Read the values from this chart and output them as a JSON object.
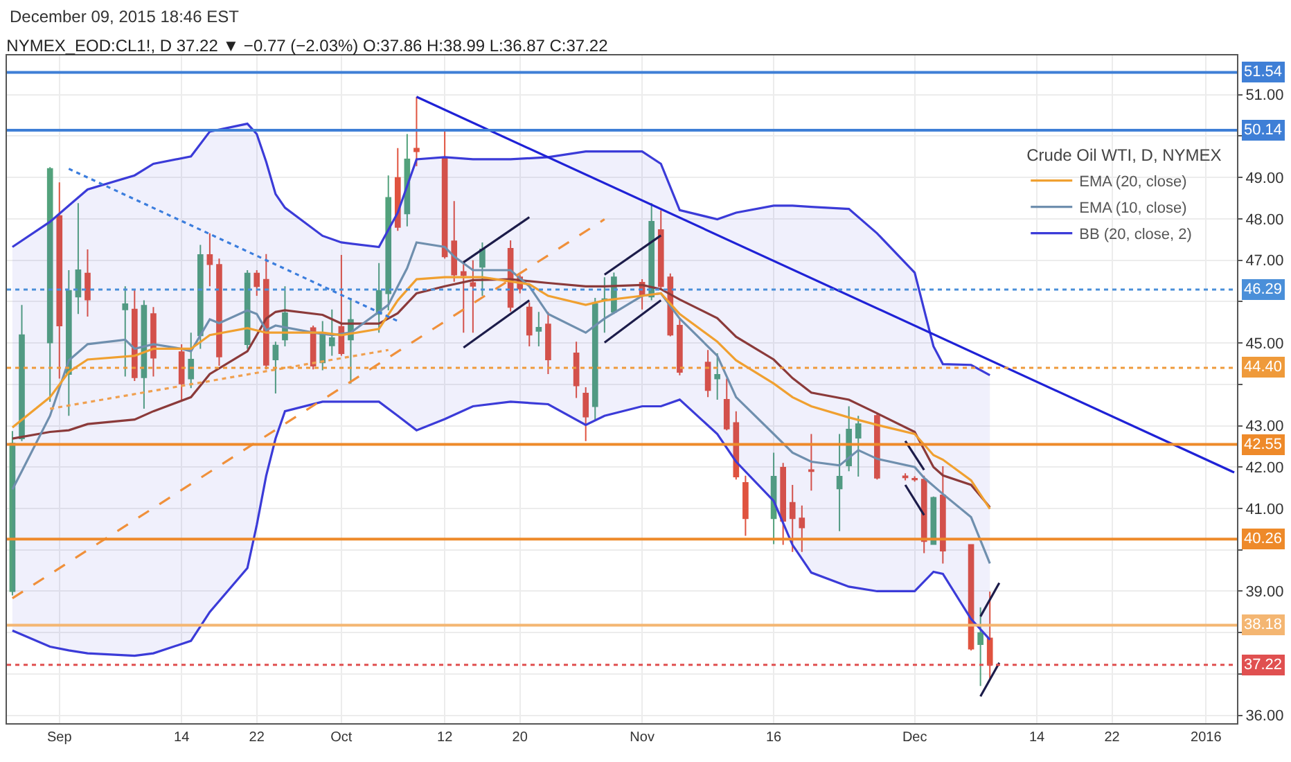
{
  "chart_data": {
    "type": "candlestick",
    "title": "NYMEX_EOD:CL1!, D 37.22 ▼ −0.77 (−2.03%) O:37.86 H:38.99 L:36.87 C:37.22",
    "annotations": [
      "December 09, 2015 18:46 EST"
    ],
    "legend_title": "Crude Oil WTI, D, NYMEX",
    "x": [
      "2015-08-27",
      "2015-08-28",
      "2015-08-31",
      "2015-09-01",
      "2015-09-02",
      "2015-09-03",
      "2015-09-04",
      "2015-09-08",
      "2015-09-09",
      "2015-09-10",
      "2015-09-11",
      "2015-09-14",
      "2015-09-15",
      "2015-09-16",
      "2015-09-17",
      "2015-09-18",
      "2015-09-21",
      "2015-09-22",
      "2015-09-23",
      "2015-09-24",
      "2015-09-25",
      "2015-09-28",
      "2015-09-29",
      "2015-09-30",
      "2015-10-01",
      "2015-10-02",
      "2015-10-05",
      "2015-10-06",
      "2015-10-07",
      "2015-10-08",
      "2015-10-09",
      "2015-10-12",
      "2015-10-13",
      "2015-10-14",
      "2015-10-15",
      "2015-10-16",
      "2015-10-19",
      "2015-10-20",
      "2015-10-21",
      "2015-10-22",
      "2015-10-23",
      "2015-10-26",
      "2015-10-27",
      "2015-10-28",
      "2015-10-29",
      "2015-10-30",
      "2015-11-02",
      "2015-11-03",
      "2015-11-04",
      "2015-11-05",
      "2015-11-06",
      "2015-11-09",
      "2015-11-10",
      "2015-11-11",
      "2015-11-12",
      "2015-11-13",
      "2015-11-16",
      "2015-11-17",
      "2015-11-18",
      "2015-11-19",
      "2015-11-20",
      "2015-11-23",
      "2015-11-24",
      "2015-11-25",
      "2015-11-27",
      "2015-11-30",
      "2015-12-01",
      "2015-12-02",
      "2015-12-03",
      "2015-12-04",
      "2015-12-07",
      "2015-12-08",
      "2015-12-09"
    ],
    "ohlc": [
      [
        39.0,
        42.87,
        38.9,
        42.57
      ],
      [
        42.69,
        45.92,
        42.63,
        45.19
      ],
      [
        45.01,
        49.25,
        43.58,
        49.21
      ],
      [
        48.07,
        48.88,
        44.14,
        45.42
      ],
      [
        44.25,
        46.76,
        43.24,
        46.26
      ],
      [
        46.12,
        48.38,
        45.7,
        46.76
      ],
      [
        46.68,
        47.26,
        45.64,
        46.05
      ],
      [
        45.81,
        46.37,
        44.19,
        45.94
      ],
      [
        45.81,
        46.28,
        44.08,
        44.17
      ],
      [
        44.17,
        46.03,
        43.41,
        45.9
      ],
      [
        45.7,
        45.87,
        44.19,
        44.64
      ],
      [
        44.78,
        44.97,
        43.63,
        44.02
      ],
      [
        44.14,
        45.25,
        43.91,
        44.6
      ],
      [
        45.18,
        47.37,
        44.86,
        47.13
      ],
      [
        47.13,
        47.65,
        46.37,
        46.9
      ],
      [
        46.89,
        47.04,
        44.45,
        44.67
      ],
      [
        44.97,
        46.76,
        44.86,
        46.68
      ],
      [
        46.68,
        46.76,
        46.14,
        46.37
      ],
      [
        46.53,
        47.15,
        44.36,
        44.47
      ],
      [
        44.6,
        45.03,
        43.78,
        44.94
      ],
      [
        45.08,
        46.37,
        44.92,
        45.72
      ],
      [
        45.36,
        45.42,
        44.36,
        44.45
      ],
      [
        44.53,
        45.53,
        44.34,
        45.25
      ],
      [
        44.94,
        45.81,
        44.69,
        45.12
      ],
      [
        45.39,
        47.13,
        44.69,
        44.75
      ],
      [
        45.08,
        46.09,
        44.02,
        45.56
      ],
      [
        45.7,
        46.93,
        45.25,
        46.26
      ],
      [
        46.2,
        49.05,
        45.79,
        48.51
      ],
      [
        48.99,
        49.71,
        47.71,
        47.8
      ],
      [
        48.13,
        50.05,
        47.82,
        49.44
      ],
      [
        49.7,
        50.95,
        49.27,
        49.63
      ],
      [
        49.49,
        50.11,
        47.04,
        47.09
      ],
      [
        47.46,
        48.43,
        46.48,
        46.65
      ],
      [
        46.72,
        46.98,
        45.25,
        46.64
      ],
      [
        46.45,
        47.0,
        45.25,
        46.38
      ],
      [
        46.84,
        47.43,
        46.14,
        47.26
      ],
      [
        47.28,
        47.48,
        45.76,
        45.87
      ],
      [
        46.59,
        46.65,
        46.2,
        46.31
      ],
      [
        45.86,
        45.98,
        44.92,
        45.2
      ],
      [
        45.29,
        45.75,
        44.92,
        45.37
      ],
      [
        45.45,
        45.75,
        44.25,
        44.6
      ],
      [
        44.75,
        45.03,
        43.67,
        43.97
      ],
      [
        43.78,
        43.93,
        42.63,
        43.22
      ],
      [
        43.47,
        46.09,
        43.13,
        45.94
      ],
      [
        46.05,
        46.59,
        45.25,
        46.06
      ],
      [
        45.75,
        46.7,
        45.7,
        46.59
      ],
      [
        46.46,
        46.54,
        45.81,
        46.14
      ],
      [
        46.12,
        48.38,
        46.03,
        47.93
      ],
      [
        47.73,
        48.21,
        46.31,
        46.37
      ],
      [
        46.59,
        46.68,
        45.16,
        45.2
      ],
      [
        45.42,
        45.59,
        44.22,
        44.3
      ],
      [
        44.53,
        44.83,
        43.69,
        43.86
      ],
      [
        44.14,
        44.75,
        43.63,
        44.23
      ],
      [
        43.63,
        44.14,
        42.89,
        42.93
      ],
      [
        43.07,
        43.35,
        41.7,
        41.77
      ],
      [
        41.62,
        41.79,
        40.34,
        40.76
      ],
      [
        40.76,
        42.35,
        40.14,
        41.77
      ],
      [
        41.99,
        42.1,
        40.12,
        40.7
      ],
      [
        41.14,
        41.57,
        39.95,
        40.76
      ],
      [
        40.76,
        41.07,
        39.95,
        40.54
      ],
      [
        41.93,
        42.8,
        41.43,
        41.9
      ],
      [
        41.48,
        42.8,
        40.45,
        41.77
      ],
      [
        42.04,
        43.47,
        41.9,
        42.91
      ],
      [
        42.71,
        43.24,
        41.77,
        43.04
      ],
      [
        43.24,
        43.3,
        41.7,
        41.74
      ],
      [
        41.78,
        41.85,
        41.68,
        41.75
      ],
      [
        41.72,
        41.78,
        41.65,
        41.7
      ],
      [
        41.7,
        41.79,
        39.92,
        40.21
      ],
      [
        40.14,
        41.29,
        40.14,
        41.26
      ],
      [
        41.32,
        42.02,
        39.67,
        39.98
      ],
      [
        40.12,
        40.14,
        37.57,
        37.61
      ],
      [
        37.72,
        38.61,
        36.71,
        37.99
      ],
      [
        37.86,
        38.99,
        36.87,
        37.22
      ]
    ],
    "colors": [
      "#53a27c",
      "#53a27c",
      "#53a27c",
      "#e0533f",
      "#53a27c",
      "#53a27c",
      "#e0533f",
      "#53a27c",
      "#e0533f",
      "#53a27c",
      "#e0533f",
      "#e0533f",
      "#53a27c",
      "#53a27c",
      "#e0533f",
      "#e0533f",
      "#53a27c",
      "#e0533f",
      "#e0533f",
      "#53a27c",
      "#53a27c",
      "#e0533f",
      "#53a27c",
      "#53a27c",
      "#e0533f",
      "#53a27c",
      "#53a27c",
      "#53a27c",
      "#e0533f",
      "#53a27c",
      "#e0533f",
      "#e0533f",
      "#e0533f",
      "#e0533f",
      "#e0533f",
      "#53a27c",
      "#e0533f",
      "#e0533f",
      "#e0533f",
      "#53a27c",
      "#e0533f",
      "#e0533f",
      "#e0533f",
      "#53a27c",
      "#53a27c",
      "#53a27c",
      "#e0533f",
      "#53a27c",
      "#e0533f",
      "#e0533f",
      "#e0533f",
      "#e0533f",
      "#53a27c",
      "#e0533f",
      "#e0533f",
      "#e0533f",
      "#53a27c",
      "#e0533f",
      "#e0533f",
      "#e0533f",
      "#e0533f",
      "#53a27c",
      "#53a27c",
      "#53a27c",
      "#e0533f",
      "#e0533f",
      "#e0533f",
      "#e0533f",
      "#53a27c",
      "#e0533f",
      "#e0533f",
      "#53a27c",
      "#e0533f"
    ],
    "series": [
      {
        "type": "line",
        "name": "BB (20, close, 2)",
        "color": "#3b3bd8",
        "x": [
          "2015-08-27",
          "2015-08-31",
          "2015-09-02",
          "2015-09-04",
          "2015-09-09",
          "2015-09-11",
          "2015-09-15",
          "2015-09-17",
          "2015-09-21",
          "2015-09-22",
          "2015-09-23",
          "2015-09-24",
          "2015-09-25",
          "2015-09-29",
          "2015-10-01",
          "2015-10-05",
          "2015-10-07",
          "2015-10-09",
          "2015-10-12",
          "2015-10-15",
          "2015-10-19",
          "2015-10-23",
          "2015-10-27",
          "2015-10-29",
          "2015-11-02",
          "2015-11-04",
          "2015-11-06",
          "2015-11-10",
          "2015-11-12",
          "2015-11-16",
          "2015-11-18",
          "2015-11-20",
          "2015-11-24",
          "2015-11-27",
          "2015-12-01",
          "2015-12-03",
          "2015-12-04",
          "2015-12-07",
          "2015-12-09"
        ],
        "values": [
          47.32,
          47.93,
          48.32,
          48.71,
          49.05,
          49.33,
          49.51,
          50.11,
          50.3,
          50.05,
          49.38,
          48.6,
          48.27,
          47.59,
          47.43,
          47.32,
          48.15,
          49.44,
          49.49,
          49.44,
          49.44,
          49.49,
          49.63,
          49.63,
          49.63,
          49.33,
          48.21,
          47.99,
          48.15,
          48.32,
          48.32,
          48.29,
          48.24,
          47.65,
          46.7,
          44.92,
          44.49,
          44.47,
          44.22
        ]
      },
      {
        "type": "line",
        "color": "#3b3bd8",
        "x": [
          "2015-08-27",
          "2015-08-31",
          "2015-09-02",
          "2015-09-04",
          "2015-09-09",
          "2015-09-11",
          "2015-09-15",
          "2015-09-17",
          "2015-09-21",
          "2015-09-22",
          "2015-09-23",
          "2015-09-24",
          "2015-09-25",
          "2015-09-29",
          "2015-10-01",
          "2015-10-05",
          "2015-10-07",
          "2015-10-09",
          "2015-10-12",
          "2015-10-15",
          "2015-10-19",
          "2015-10-23",
          "2015-10-27",
          "2015-10-29",
          "2015-11-02",
          "2015-11-04",
          "2015-11-06",
          "2015-11-10",
          "2015-11-12",
          "2015-11-16",
          "2015-11-18",
          "2015-11-20",
          "2015-11-24",
          "2015-11-27",
          "2015-12-01",
          "2015-12-03",
          "2015-12-04",
          "2015-12-07",
          "2015-12-09"
        ],
        "values": [
          38.05,
          37.66,
          37.57,
          37.5,
          37.44,
          37.5,
          37.8,
          38.5,
          39.56,
          40.6,
          41.79,
          42.69,
          43.35,
          43.58,
          43.58,
          43.58,
          43.24,
          42.89,
          43.16,
          43.47,
          43.58,
          43.52,
          43.02,
          43.24,
          43.47,
          43.47,
          43.63,
          42.8,
          42.13,
          41.18,
          40.12,
          39.45,
          39.11,
          39.0,
          39.0,
          39.47,
          39.42,
          38.33,
          37.83
        ]
      },
      {
        "type": "line",
        "color": "#8b3a3a",
        "upper": [
          47.32,
          47.93,
          48.32,
          48.71,
          49.05,
          49.33,
          49.51,
          50.11,
          50.3,
          50.05,
          49.38,
          48.6,
          48.27,
          47.59,
          47.43,
          47.32,
          48.15,
          49.44,
          49.49,
          49.44,
          49.44,
          49.49,
          49.63,
          49.63,
          49.63,
          49.33,
          48.21,
          47.99,
          48.15,
          48.32,
          48.32,
          48.29,
          48.24,
          47.65,
          46.7,
          44.92,
          44.49,
          44.47,
          44.22
        ],
        "lower": [
          38.05,
          37.66,
          37.57,
          37.5,
          37.44,
          37.5,
          37.8,
          38.5,
          39.56,
          40.6,
          41.79,
          42.69,
          43.35,
          43.58,
          43.58,
          43.58,
          43.24,
          42.89,
          43.16,
          43.47,
          43.58,
          43.52,
          43.02,
          43.24,
          43.47,
          43.47,
          43.63,
          42.8,
          42.13,
          41.18,
          40.12,
          39.45,
          39.11,
          39.0,
          39.0,
          39.47,
          39.42,
          38.33,
          37.83
        ],
        "x": [
          "2015-08-27",
          "2015-08-31",
          "2015-09-02",
          "2015-09-04",
          "2015-09-09",
          "2015-09-11",
          "2015-09-15",
          "2015-09-17",
          "2015-09-21",
          "2015-09-22",
          "2015-09-23",
          "2015-09-24",
          "2015-09-25",
          "2015-09-29",
          "2015-10-01",
          "2015-10-05",
          "2015-10-07",
          "2015-10-09",
          "2015-10-12",
          "2015-10-15",
          "2015-10-19",
          "2015-10-23",
          "2015-10-27",
          "2015-10-29",
          "2015-11-02",
          "2015-11-04",
          "2015-11-06",
          "2015-11-10",
          "2015-11-12",
          "2015-11-16",
          "2015-11-18",
          "2015-11-20",
          "2015-11-24",
          "2015-11-27",
          "2015-12-01",
          "2015-12-03",
          "2015-12-04",
          "2015-12-07",
          "2015-12-09"
        ],
        "values": [
          42.69,
          42.85,
          42.89,
          43.04,
          43.15,
          43.35,
          43.69,
          44.25,
          44.8,
          45.19,
          45.59,
          45.75,
          45.79,
          45.68,
          45.47,
          45.47,
          45.72,
          46.2,
          46.37,
          46.52,
          46.54,
          46.45,
          46.37,
          46.37,
          46.4,
          46.3,
          46.05,
          45.6,
          45.15,
          44.6,
          44.15,
          43.8,
          43.63,
          43.3,
          42.85,
          42.0,
          41.8,
          41.57,
          41.03
        ]
      },
      {
        "type": "line",
        "name": "EMA (10, close)",
        "color": "#6f8fae",
        "x": [
          "2015-08-27",
          "2015-08-28",
          "2015-08-31",
          "2015-09-02",
          "2015-09-04",
          "2015-09-08",
          "2015-09-09",
          "2015-09-11",
          "2015-09-14",
          "2015-09-15",
          "2015-09-17",
          "2015-09-18",
          "2015-09-21",
          "2015-09-22",
          "2015-09-23",
          "2015-09-24",
          "2015-09-28",
          "2015-09-30",
          "2015-10-02",
          "2015-10-06",
          "2015-10-07",
          "2015-10-08",
          "2015-10-09",
          "2015-10-12",
          "2015-10-13",
          "2015-10-15",
          "2015-10-19",
          "2015-10-21",
          "2015-10-23",
          "2015-10-27",
          "2015-10-29",
          "2015-11-02",
          "2015-11-04",
          "2015-11-06",
          "2015-11-10",
          "2015-11-12",
          "2015-11-16",
          "2015-11-18",
          "2015-11-20",
          "2015-11-23",
          "2015-11-25",
          "2015-11-27",
          "2015-12-01",
          "2015-12-02",
          "2015-12-04",
          "2015-12-07",
          "2015-12-09"
        ],
        "values": [
          41.46,
          41.9,
          43.24,
          44.58,
          44.97,
          45.08,
          44.86,
          44.97,
          44.86,
          44.8,
          45.57,
          45.48,
          45.79,
          45.7,
          45.31,
          45.42,
          45.25,
          45.19,
          45.25,
          45.92,
          46.37,
          46.81,
          47.43,
          47.32,
          47.09,
          46.76,
          46.76,
          46.37,
          45.7,
          45.25,
          45.59,
          46.14,
          46.2,
          45.59,
          44.69,
          43.69,
          42.8,
          42.35,
          42.13,
          42.04,
          42.41,
          42.2,
          42.0,
          41.74,
          41.35,
          40.79,
          39.67
        ]
      },
      {
        "type": "line",
        "name": "EMA (20, close)",
        "color": "#f0a030",
        "x": [
          "2015-08-27",
          "2015-08-31",
          "2015-09-02",
          "2015-09-04",
          "2015-09-09",
          "2015-09-11",
          "2015-09-15",
          "2015-09-17",
          "2015-09-21",
          "2015-09-23",
          "2015-09-29",
          "2015-10-01",
          "2015-10-05",
          "2015-10-07",
          "2015-10-09",
          "2015-10-12",
          "2015-10-16",
          "2015-10-21",
          "2015-10-23",
          "2015-10-27",
          "2015-10-29",
          "2015-11-02",
          "2015-11-04",
          "2015-11-06",
          "2015-11-10",
          "2015-11-12",
          "2015-11-16",
          "2015-11-18",
          "2015-11-20",
          "2015-11-24",
          "2015-11-27",
          "2015-12-01",
          "2015-12-03",
          "2015-12-04",
          "2015-12-07",
          "2015-12-09"
        ],
        "values": [
          42.96,
          43.69,
          44.3,
          44.6,
          44.69,
          44.86,
          44.86,
          45.19,
          45.36,
          45.25,
          45.25,
          45.19,
          45.34,
          46.03,
          46.54,
          46.59,
          46.59,
          46.42,
          46.14,
          45.92,
          46.03,
          46.14,
          46.2,
          45.7,
          45.03,
          44.58,
          44.02,
          43.69,
          43.47,
          43.2,
          43.02,
          42.8,
          42.29,
          42.18,
          41.68,
          40.99
        ]
      },
      {
        "type": "line",
        "color": "#1f22d6",
        "x": [
          "2015-10-09",
          "2016-01-04"
        ],
        "values": [
          50.95,
          41.87
        ]
      },
      {
        "type": "line",
        "color": "#3b7ddd",
        "line_style": "dotted",
        "x": [
          "2015-09-02",
          "2015-10-07"
        ],
        "values": [
          49.21,
          45.53
        ]
      },
      {
        "type": "line",
        "color": "#f0903a",
        "line_style": "dashed",
        "x": [
          "2015-08-27",
          "2015-10-29"
        ],
        "values": [
          38.83,
          47.99
        ]
      },
      {
        "type": "line",
        "color": "#f0a050",
        "line_style": "dotted",
        "x": [
          "2015-08-31",
          "2015-10-06"
        ],
        "values": [
          43.41,
          44.83
        ]
      },
      {
        "type": "line",
        "color": "#1c1c4a",
        "x": [
          "2015-10-14",
          "2015-10-21"
        ],
        "values": [
          46.95,
          48.04
        ]
      },
      {
        "type": "line",
        "color": "#1c1c4a",
        "x": [
          "2015-10-14",
          "2015-10-21"
        ],
        "values": [
          44.89,
          46.03
        ]
      },
      {
        "type": "line",
        "color": "#1c1c4a",
        "x": [
          "2015-10-29",
          "2015-11-04"
        ],
        "values": [
          46.65,
          47.6
        ]
      },
      {
        "type": "line",
        "color": "#1c1c4a",
        "x": [
          "2015-10-29",
          "2015-11-04"
        ],
        "values": [
          45.01,
          46.03
        ]
      },
      {
        "type": "line",
        "color": "#1c1c4a",
        "x": [
          "2015-11-30",
          "2015-12-02"
        ],
        "values": [
          42.63,
          41.93
        ]
      },
      {
        "type": "line",
        "color": "#1c1c4a",
        "x": [
          "2015-11-30",
          "2015-12-02"
        ],
        "values": [
          41.57,
          40.84
        ]
      },
      {
        "type": "line",
        "color": "#1c1c4a",
        "x": [
          "2015-12-08",
          "2015-12-10"
        ],
        "values": [
          38.39,
          39.2
        ]
      },
      {
        "type": "line",
        "color": "#1c1c4a",
        "x": [
          "2015-12-08",
          "2015-12-10"
        ],
        "values": [
          36.46,
          37.27
        ]
      }
    ],
    "ref_lines": [
      {
        "axis": "y",
        "value": 51.54,
        "label": "51.54",
        "color": "#3f7fd6",
        "line_style": "solid"
      },
      {
        "axis": "y",
        "value": 50.14,
        "label": "50.14",
        "color": "#3f7fd6",
        "line_style": "solid"
      },
      {
        "axis": "y",
        "value": 46.29,
        "label": "46.29",
        "color": "#4a8fd9",
        "line_style": "dotted"
      },
      {
        "axis": "y",
        "value": 44.4,
        "label": "44.40",
        "color": "#ef9a3a",
        "line_style": "dotted"
      },
      {
        "axis": "y",
        "value": 42.55,
        "label": "42.55",
        "color": "#ee8a2a",
        "line_style": "solid"
      },
      {
        "axis": "y",
        "value": 40.26,
        "label": "40.26",
        "color": "#ee8a2a",
        "line_style": "solid"
      },
      {
        "axis": "y",
        "value": 38.18,
        "label": "38.18",
        "color": "#f4b672",
        "line_style": "solid"
      },
      {
        "axis": "y",
        "value": 37.22,
        "label": "37.22",
        "color": "#e05050",
        "line_style": "dotted"
      }
    ],
    "xlim": [
      "2015-08-26T10:00",
      "2016-01-04T07:00"
    ],
    "xticks": [
      {
        "value": "2015-09-01",
        "label": "Sep"
      },
      {
        "value": "2015-09-14",
        "label": "14"
      },
      {
        "value": "2015-09-22",
        "label": "22"
      },
      {
        "value": "2015-10-01",
        "label": "Oct"
      },
      {
        "value": "2015-10-12",
        "label": "12"
      },
      {
        "value": "2015-10-20",
        "label": "20"
      },
      {
        "value": "2015-11-02",
        "label": "Nov"
      },
      {
        "value": "2015-11-16",
        "label": "16"
      },
      {
        "value": "2015-12-01",
        "label": "Dec"
      },
      {
        "value": "2015-12-14",
        "label": "14"
      },
      {
        "value": "2015-12-22",
        "label": "22"
      },
      {
        "value": "2016-01-01",
        "label": "2016"
      }
    ],
    "ylim": [
      35.81,
      51.95
    ],
    "yticks": [
      {
        "value": 36,
        "label": "36.00"
      },
      {
        "value": 37,
        "label": null
      },
      {
        "value": 38,
        "label": null
      },
      {
        "value": 39,
        "label": "39.00"
      },
      {
        "value": 40,
        "label": null
      },
      {
        "value": 41,
        "label": "41.00"
      },
      {
        "value": 42,
        "label": "42.00"
      },
      {
        "value": 43,
        "label": "43.00"
      },
      {
        "value": 44,
        "label": null
      },
      {
        "value": 45,
        "label": "45.00"
      },
      {
        "value": 46,
        "label": null
      },
      {
        "value": 47,
        "label": "47.00"
      },
      {
        "value": 48,
        "label": "48.00"
      },
      {
        "value": 49,
        "label": "49.00"
      },
      {
        "value": 50,
        "label": null
      },
      {
        "value": 51,
        "label": "51.00"
      }
    ],
    "grid": true,
    "legend": "top right"
  }
}
